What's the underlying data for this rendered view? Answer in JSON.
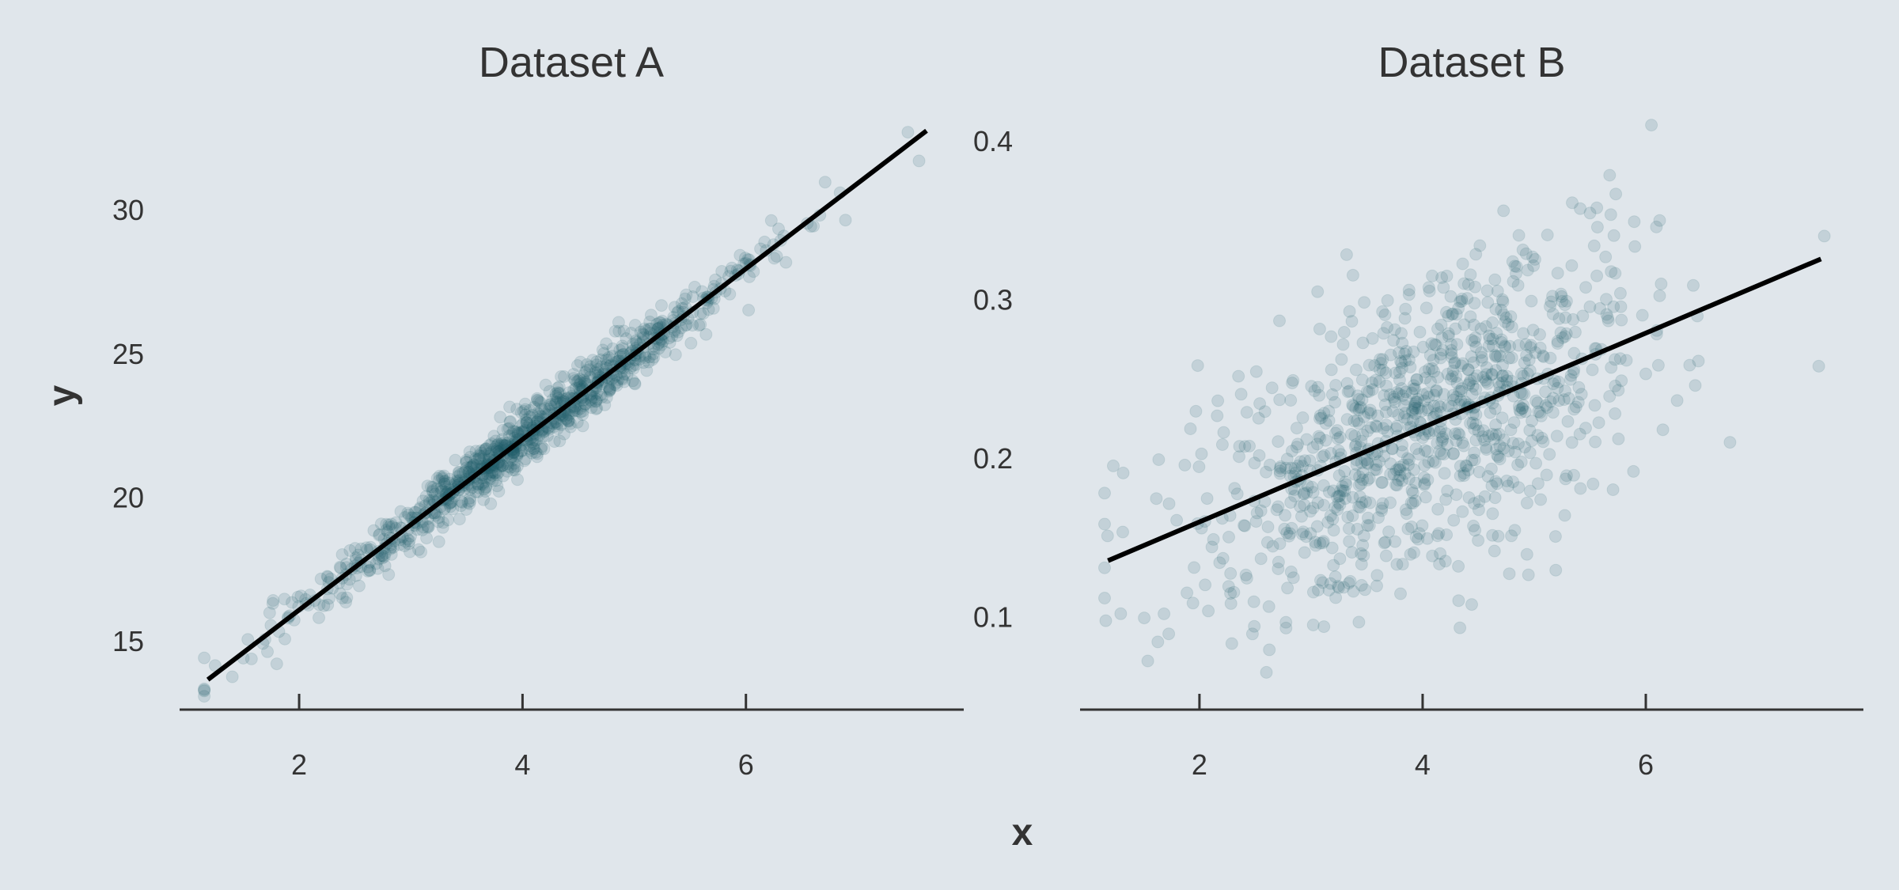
{
  "figure": {
    "xlabel": "x",
    "ylabel": "y",
    "background": "#e0e6eb",
    "point_color": "#1f5f6e",
    "line_color": "#000000",
    "text_color": "#333333"
  },
  "chart_data": [
    {
      "type": "scatter",
      "title": "Dataset A",
      "xlabel": "x",
      "ylabel": "y",
      "xlim": [
        0.93,
        7.95
      ],
      "ylim": [
        12.8,
        33.5
      ],
      "xticks": [
        2,
        4,
        6
      ],
      "xtick_labels": [
        "2",
        "4",
        "6"
      ],
      "yticks": [
        15,
        20,
        25,
        30
      ],
      "ytick_labels": [
        "15",
        "20",
        "25",
        "30"
      ],
      "grid": false,
      "point_alpha": 0.15,
      "n_points": 1000,
      "x_distribution": {
        "mean": 4.0,
        "sd": 1.0
      },
      "fit_line": {
        "x": [
          1.2,
          7.6
        ],
        "y": [
          13.7,
          32.7
        ]
      },
      "residual_sd": 0.5,
      "notable_points": [
        {
          "x": 7.45,
          "y": 32.7
        },
        {
          "x": 7.55,
          "y": 31.7
        },
        {
          "x": 1.8,
          "y": 14.2
        },
        {
          "x": 1.5,
          "y": 14.4
        }
      ]
    },
    {
      "type": "scatter",
      "title": "Dataset B",
      "xlabel": "x",
      "ylabel": "",
      "xlim": [
        0.93,
        7.95
      ],
      "ylim": [
        0.045,
        0.42
      ],
      "xticks": [
        2,
        4,
        6
      ],
      "xtick_labels": [
        "2",
        "4",
        "6"
      ],
      "yticks": [
        0.1,
        0.2,
        0.3,
        0.4
      ],
      "ytick_labels": [
        "0.1",
        "0.2",
        "0.3",
        "0.4"
      ],
      "grid": false,
      "point_alpha": 0.15,
      "n_points": 1000,
      "x_distribution": {
        "mean": 4.0,
        "sd": 1.0
      },
      "fit_line": {
        "x": [
          1.2,
          7.55
        ],
        "y": [
          0.136,
          0.325
        ]
      },
      "residual_sd": 0.045,
      "notable_points": [
        {
          "x": 6.05,
          "y": 0.41
        },
        {
          "x": 2.6,
          "y": 0.065
        },
        {
          "x": 7.6,
          "y": 0.34
        },
        {
          "x": 7.55,
          "y": 0.258
        },
        {
          "x": 1.15,
          "y": 0.178
        }
      ]
    }
  ]
}
